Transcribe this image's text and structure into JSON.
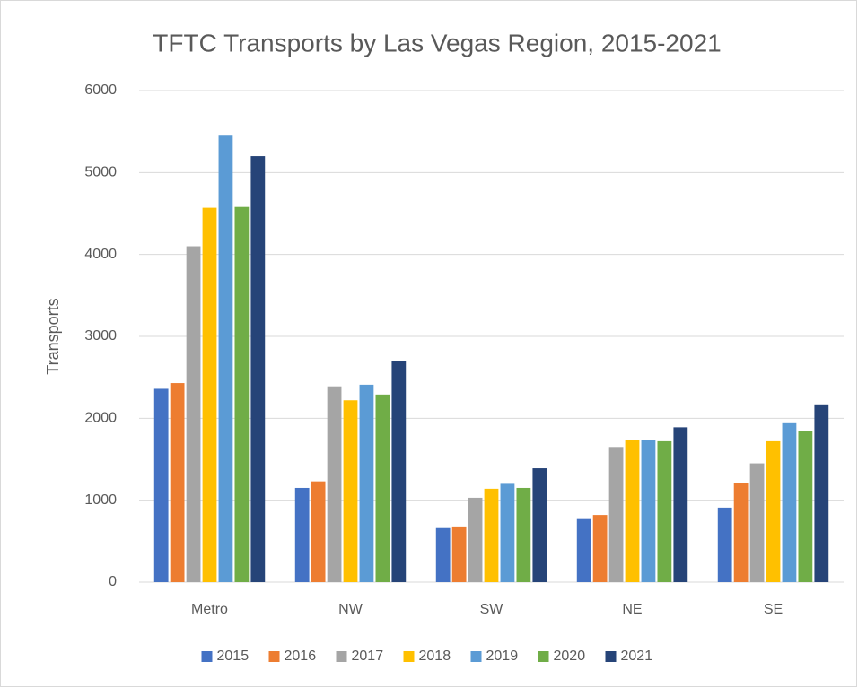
{
  "chart_data": {
    "type": "bar",
    "title": "TFTC Transports by Las Vegas Region, 2015-2021",
    "y_label": "Transports",
    "categories": [
      "Metro",
      "NW",
      "SW",
      "NE",
      "SE"
    ],
    "series": [
      {
        "name": "2015",
        "color": "#4472c4",
        "values": [
          2360,
          1150,
          660,
          770,
          910
        ]
      },
      {
        "name": "2016",
        "color": "#ed7d31",
        "values": [
          2430,
          1230,
          680,
          820,
          1210
        ]
      },
      {
        "name": "2017",
        "color": "#a5a5a5",
        "values": [
          4100,
          2390,
          1030,
          1650,
          1450
        ]
      },
      {
        "name": "2018",
        "color": "#ffc000",
        "values": [
          4570,
          2220,
          1140,
          1730,
          1720
        ]
      },
      {
        "name": "2019",
        "color": "#5b9bd5",
        "values": [
          5450,
          2410,
          1200,
          1740,
          1940
        ]
      },
      {
        "name": "2020",
        "color": "#70ad47",
        "values": [
          4580,
          2290,
          1150,
          1720,
          1850
        ]
      },
      {
        "name": "2021",
        "color": "#264478",
        "values": [
          5200,
          2700,
          1390,
          1890,
          2170
        ]
      }
    ],
    "ylim": [
      0,
      6000
    ],
    "yticks": [
      0,
      1000,
      2000,
      3000,
      4000,
      5000,
      6000
    ],
    "grid": true,
    "legend": "bottom"
  }
}
